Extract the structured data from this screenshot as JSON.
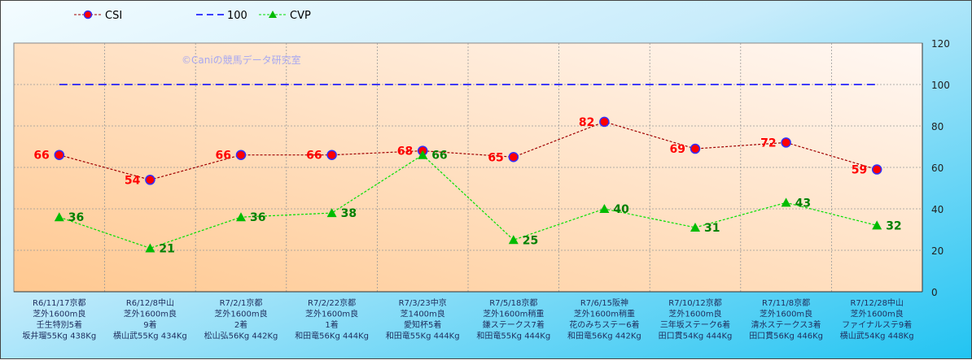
{
  "chart_data": {
    "type": "line",
    "watermark": "©Caniの競馬データ研究室",
    "categories": [
      [
        "R6/11/17京都",
        "芝外1600m良",
        "壬生特別5着",
        "坂井瑠55Kg 438Kg"
      ],
      [
        "R6/12/8中山",
        "芝外1600m良",
        "9着",
        "横山武55Kg 434Kg"
      ],
      [
        "R7/2/1京都",
        "芝外1600m良",
        "2着",
        "松山弘56Kg 442Kg"
      ],
      [
        "R7/2/22京都",
        "芝外1600m良",
        "1着",
        "和田竜56Kg 444Kg"
      ],
      [
        "R7/3/23中京",
        "芝1400m良",
        "愛知杯5着",
        "和田竜55Kg 444Kg"
      ],
      [
        "R7/5/18京都",
        "芝外1600m稍重",
        "鎌ステークス7着",
        "和田竜55Kg 444Kg"
      ],
      [
        "R7/6/15阪神",
        "芝外1600m稍重",
        "花のみちステー6着",
        "和田竜56Kg 442Kg"
      ],
      [
        "R7/10/12京都",
        "芝外1600m良",
        "三年坂ステーク6着",
        "田口貫54Kg 444Kg"
      ],
      [
        "R7/11/8京都",
        "芝外1600m良",
        "清水ステークス3着",
        "田口貫56Kg 446Kg"
      ],
      [
        "R7/12/28中山",
        "芝外1600m良",
        "ファイナルステ9着",
        "横山武54Kg 448Kg"
      ]
    ],
    "series": [
      {
        "name": "CSI",
        "values": [
          66,
          54,
          66,
          66,
          68,
          65,
          82,
          69,
          72,
          59
        ],
        "color": "#a00000",
        "marker": "circle",
        "marker_color": "#ff0000",
        "marker_edge": "#3030ff",
        "label_color": "#ff0000"
      },
      {
        "name": "100",
        "values": [
          100,
          100,
          100,
          100,
          100,
          100,
          100,
          100,
          100,
          100
        ],
        "color": "#0000ff",
        "style": "dashed"
      },
      {
        "name": "CVP",
        "values": [
          36,
          21,
          36,
          38,
          66,
          25,
          40,
          31,
          43,
          32
        ],
        "color": "#00e000",
        "marker": "triangle",
        "marker_color": "#00bb00",
        "label_color": "#008000"
      }
    ],
    "y_axis": {
      "position": "right",
      "ylim": [
        0,
        120
      ],
      "ticks": [
        0,
        20,
        40,
        60,
        80,
        100,
        120
      ]
    },
    "grid": true,
    "legend": "top-left"
  }
}
